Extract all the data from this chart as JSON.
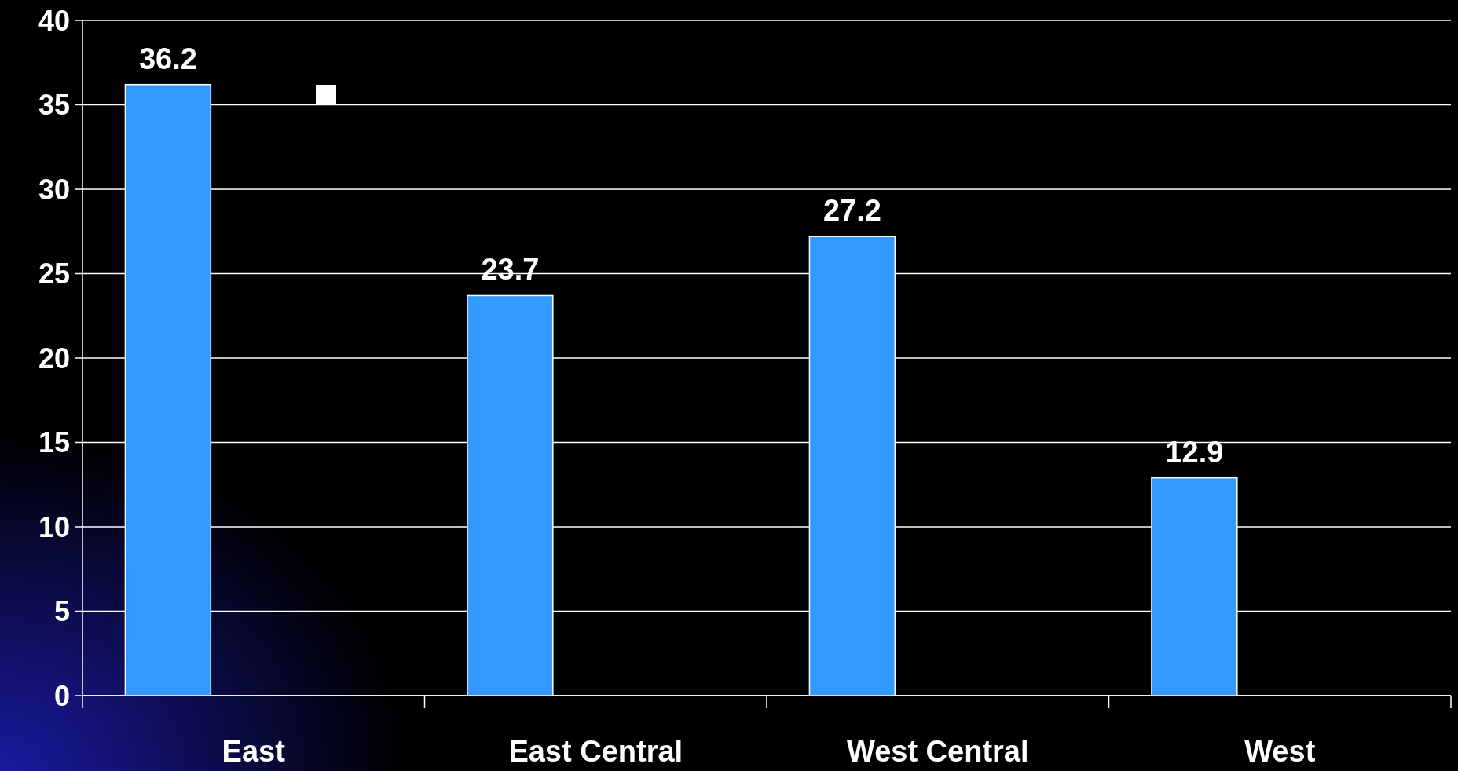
{
  "chart_data": {
    "type": "bar",
    "categories": [
      "East",
      "East Central",
      "West Central",
      "West"
    ],
    "values": [
      36.2,
      23.7,
      27.2,
      12.9
    ],
    "color": "#3399ff",
    "ylim": [
      0,
      40
    ],
    "yticks": [
      0,
      5,
      10,
      15,
      20,
      25,
      30,
      35,
      40
    ],
    "grid": "y",
    "data_labels": true
  }
}
